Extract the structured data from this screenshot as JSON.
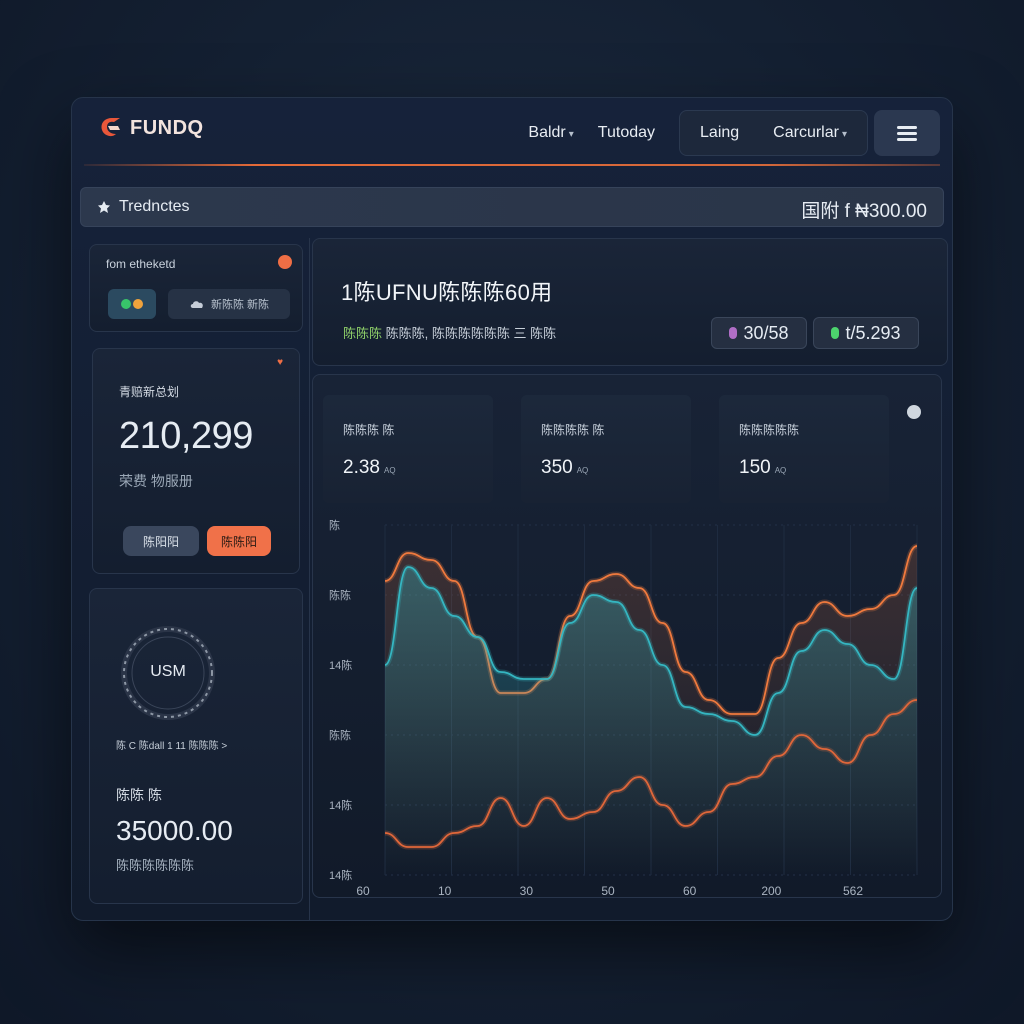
{
  "app": {
    "logo_text": "FUNDQ"
  },
  "nav": {
    "links": [
      "Baldr",
      "Tutoday"
    ],
    "group": [
      "Laing",
      "Carcurlar"
    ]
  },
  "subbar": {
    "title": "Trednctes",
    "amount": "国附 f ₦300.00"
  },
  "card_account": {
    "label": "fom etheketd",
    "pill_text": "新陈陈 新陈"
  },
  "card_balance": {
    "label": "青赔新总划",
    "value": "210,299",
    "sub": "荣费 物服册",
    "btn_secondary": "陈阳阳",
    "btn_primary": "陈陈阳"
  },
  "card_gauge": {
    "gauge_label": "USM",
    "caption": "陈 C 陈dall 1 11 陈陈陈 >",
    "label": "陈陈 陈",
    "value": "35000.00",
    "sub": "陈陈陈陈陈陈"
  },
  "summary": {
    "heading": "1陈UFNU陈陈陈60用",
    "desc_highlight": "陈陈陈",
    "desc_rest": "陈陈陈, 陈陈陈陈陈陈 三 陈陈",
    "stat1": "30/58",
    "stat2": "t/5.293"
  },
  "minicards": [
    {
      "label": "陈陈陈 陈",
      "value": "2.38",
      "unit": "AQ"
    },
    {
      "label": "陈陈陈陈 陈",
      "value": "350",
      "unit": "AQ"
    },
    {
      "label": "陈陈陈陈陈",
      "value": "150",
      "unit": "AQ"
    }
  ],
  "chart_data": {
    "type": "line",
    "x_ticks": [
      "60",
      "10",
      "30",
      "50",
      "60",
      "200",
      "562"
    ],
    "y_ticks": [
      "陈",
      "陈陈",
      "14陈",
      "陈陈",
      "14陈",
      "14陈"
    ],
    "series": [
      {
        "name": "",
        "color": "#f07a3e",
        "values": [
          84,
          92,
          90,
          84,
          68,
          52,
          52,
          56,
          74,
          84,
          86,
          82,
          72,
          58,
          50,
          46,
          46,
          62,
          72,
          78,
          74,
          76,
          80,
          94
        ]
      },
      {
        "name": "",
        "color": "#35b6c1",
        "values": [
          60,
          88,
          82,
          74,
          68,
          58,
          56,
          56,
          72,
          80,
          78,
          70,
          60,
          48,
          46,
          44,
          40,
          52,
          64,
          70,
          66,
          60,
          56,
          82
        ]
      },
      {
        "name": "",
        "color": "#e0673a",
        "values": [
          12,
          8,
          8,
          12,
          14,
          22,
          14,
          22,
          16,
          18,
          24,
          28,
          20,
          14,
          18,
          26,
          28,
          34,
          40,
          36,
          32,
          40,
          46,
          50
        ]
      }
    ],
    "ylim": [
      0,
      100
    ],
    "grid": true
  },
  "colors": {
    "accent": "#f07149",
    "teal": "#35b6c1",
    "panel": "#141e2f"
  }
}
